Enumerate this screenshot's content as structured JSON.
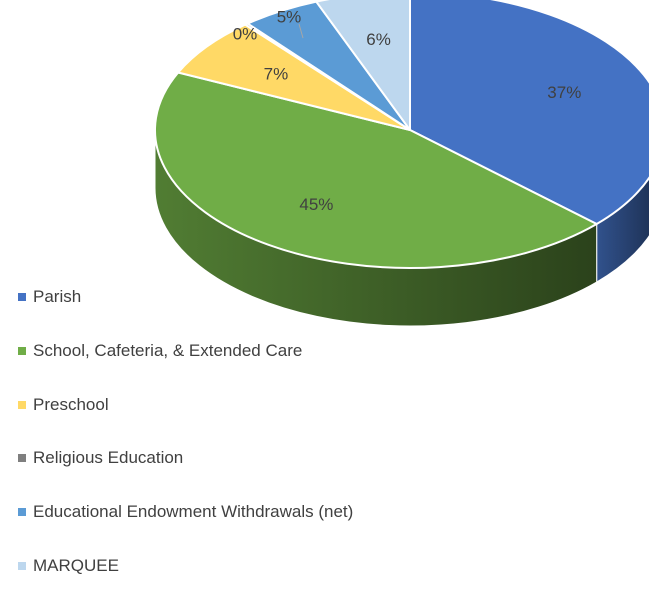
{
  "chart_data": {
    "type": "pie",
    "title": "",
    "categories": [
      "Parish",
      "School, Cafeteria, & Extended Care",
      "Preschool",
      "Religious Education",
      "Educational Endowment Withdrawals (net)",
      "MARQUEE"
    ],
    "values": [
      37,
      45,
      7,
      0,
      5,
      6
    ],
    "data_labels": [
      "37%",
      "45%",
      "7%",
      "0%",
      "5%",
      "6%"
    ],
    "colors": [
      "#4472C4",
      "#70AD47",
      "#FFD966",
      "#7F7F7F",
      "#5B9BD5",
      "#BDD7EE"
    ],
    "legend_position": "bottom-left",
    "style": "3d-pie"
  }
}
